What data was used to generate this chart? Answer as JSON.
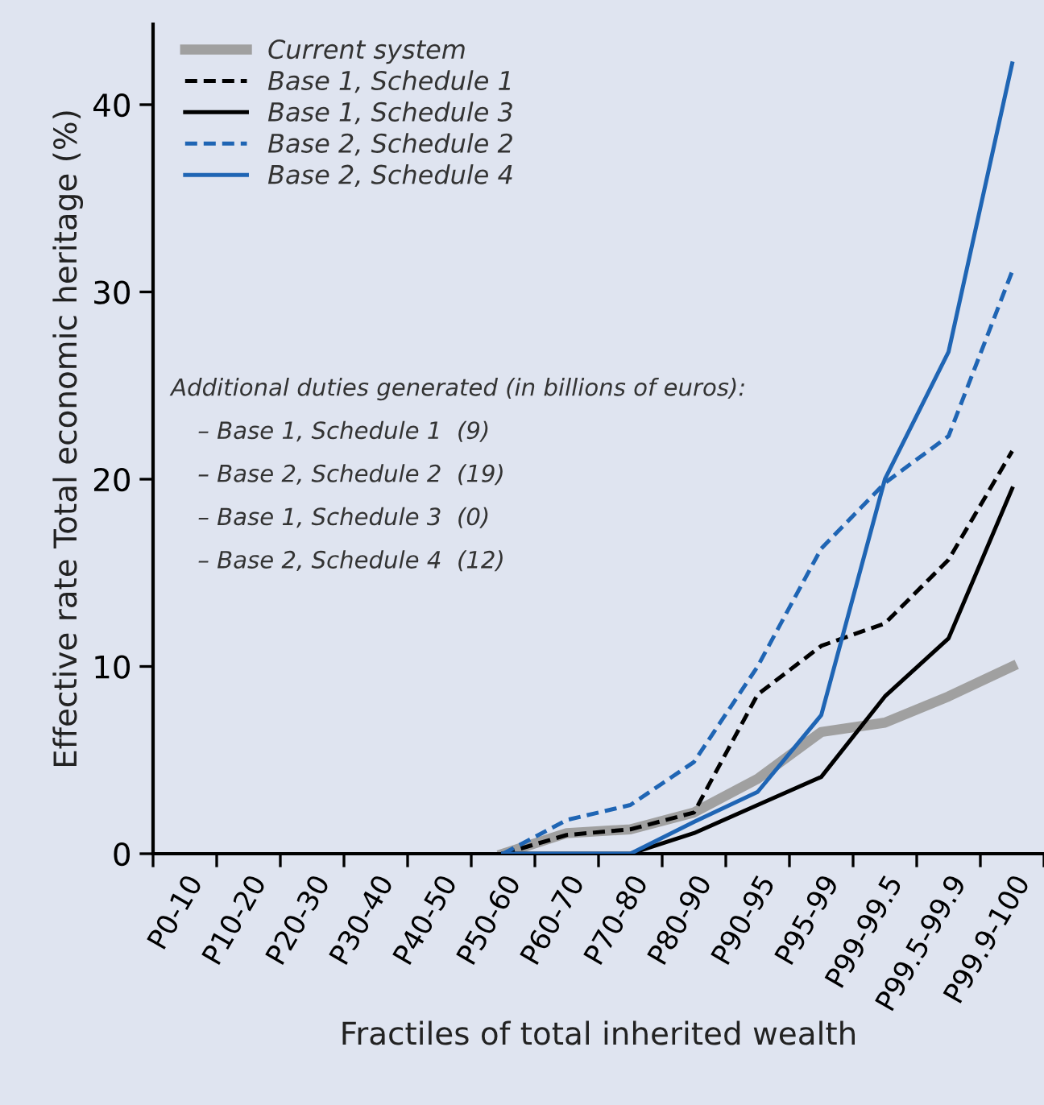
{
  "chart_data": {
    "type": "line",
    "xlabel": "Fractiles of total inherited wealth",
    "ylabel": "Effective rate Total economic heritage (%)",
    "categories": [
      "P0-10",
      "P10-20",
      "P20-30",
      "P30-40",
      "P40-50",
      "P50-60",
      "P60-70",
      "P70-80",
      "P80-90",
      "P90-95",
      "P95-99",
      "P99-99.5",
      "P99.5-99.9",
      "P99.9-100"
    ],
    "series": [
      {
        "name": "Current system",
        "color": "#a0a0a0",
        "line_style": "solid",
        "values": [
          null,
          null,
          null,
          null,
          null,
          0,
          1.1,
          1.3,
          2.2,
          4.0,
          6.5,
          7.0,
          8.4,
          10.0
        ]
      },
      {
        "name": "Base 1, Schedule 1",
        "color": "#000000",
        "line_style": "dashed",
        "values": [
          null,
          null,
          null,
          null,
          null,
          0,
          1.0,
          1.3,
          2.2,
          8.5,
          11.1,
          12.3,
          15.7,
          21.5
        ]
      },
      {
        "name": "Base 1, Schedule 3",
        "color": "#000000",
        "line_style": "solid",
        "values": [
          null,
          null,
          null,
          null,
          null,
          0,
          0,
          0,
          1.1,
          2.6,
          4.1,
          8.4,
          11.5,
          19.5
        ]
      },
      {
        "name": "Base 2, Schedule 2",
        "color": "#1f65b4",
        "line_style": "dashed",
        "values": [
          null,
          null,
          null,
          null,
          null,
          0,
          1.8,
          2.6,
          4.9,
          10.0,
          16.3,
          19.8,
          22.3,
          31.1
        ]
      },
      {
        "name": "Base 2, Schedule 4",
        "color": "#1f65b4",
        "line_style": "solid",
        "values": [
          null,
          null,
          null,
          null,
          null,
          0,
          0,
          0,
          1.7,
          3.3,
          7.4,
          20.0,
          26.8,
          42.2
        ]
      }
    ],
    "ylim": [
      0,
      44.3
    ],
    "yticks": [
      0,
      10,
      20,
      30,
      40
    ],
    "grid": false,
    "legend": "top left",
    "annotations": [
      "Additional duties generated (in billions of euros):",
      "– Base 1, Schedule 1  (9)",
      "– Base 2, Schedule 2  (19)",
      "– Base 1, Schedule 3  (0)",
      "– Base 2, Schedule 4  (12)"
    ]
  }
}
